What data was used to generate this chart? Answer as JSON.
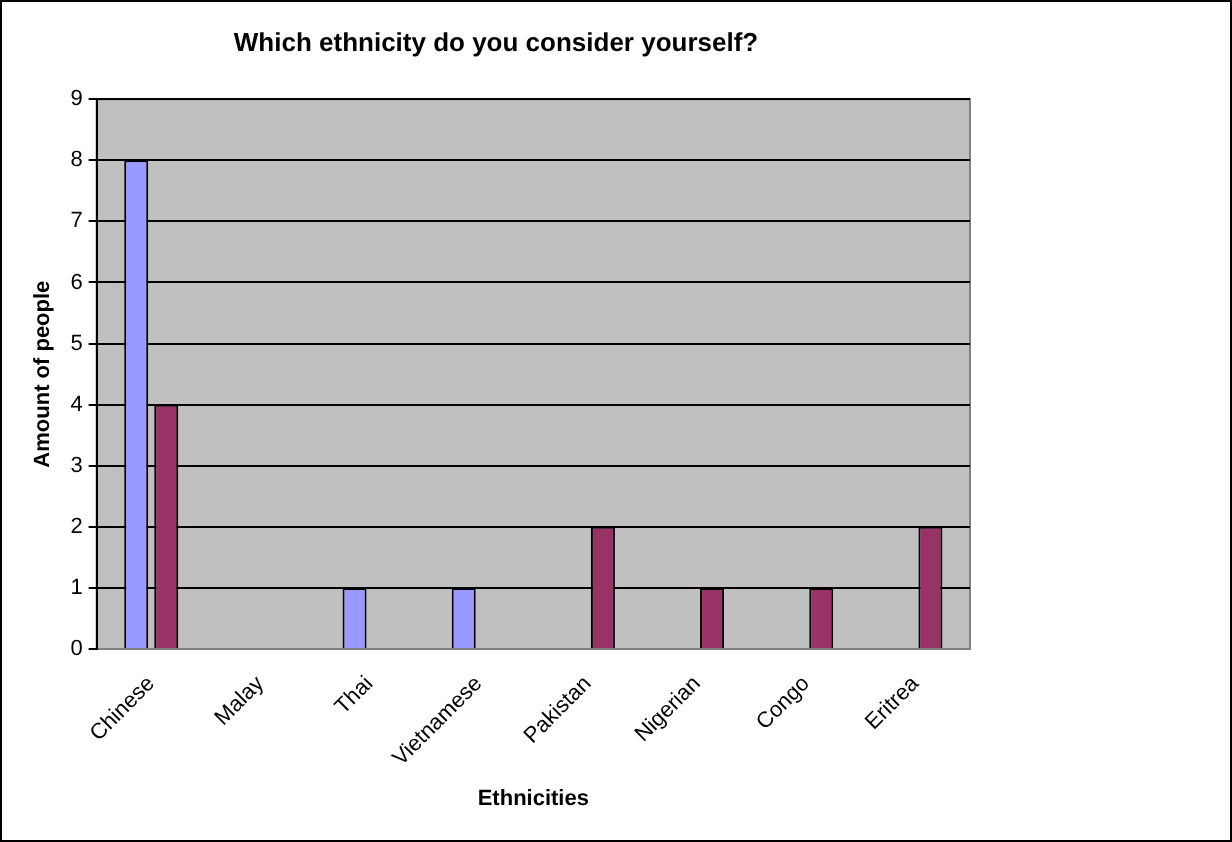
{
  "chart_data": {
    "type": "bar",
    "title": "Which ethnicity do you consider yourself?",
    "xlabel": "Ethnicities",
    "ylabel": "Amount of people",
    "categories": [
      "Chinese",
      "Malay",
      "Thai",
      "Vietnamese",
      "Pakistan",
      "Nigerian",
      "Congo",
      "Eritrea"
    ],
    "series": [
      {
        "color": "#9999ff",
        "values": [
          8,
          0,
          1,
          1,
          0,
          0,
          0,
          0
        ]
      },
      {
        "color": "#993366",
        "values": [
          4,
          0,
          0,
          0,
          2,
          1,
          1,
          2
        ]
      }
    ],
    "ylim": [
      0,
      9
    ],
    "yticks": [
      0,
      1,
      2,
      3,
      4,
      5,
      6,
      7,
      8,
      9
    ],
    "grid": "y",
    "legend": false
  }
}
